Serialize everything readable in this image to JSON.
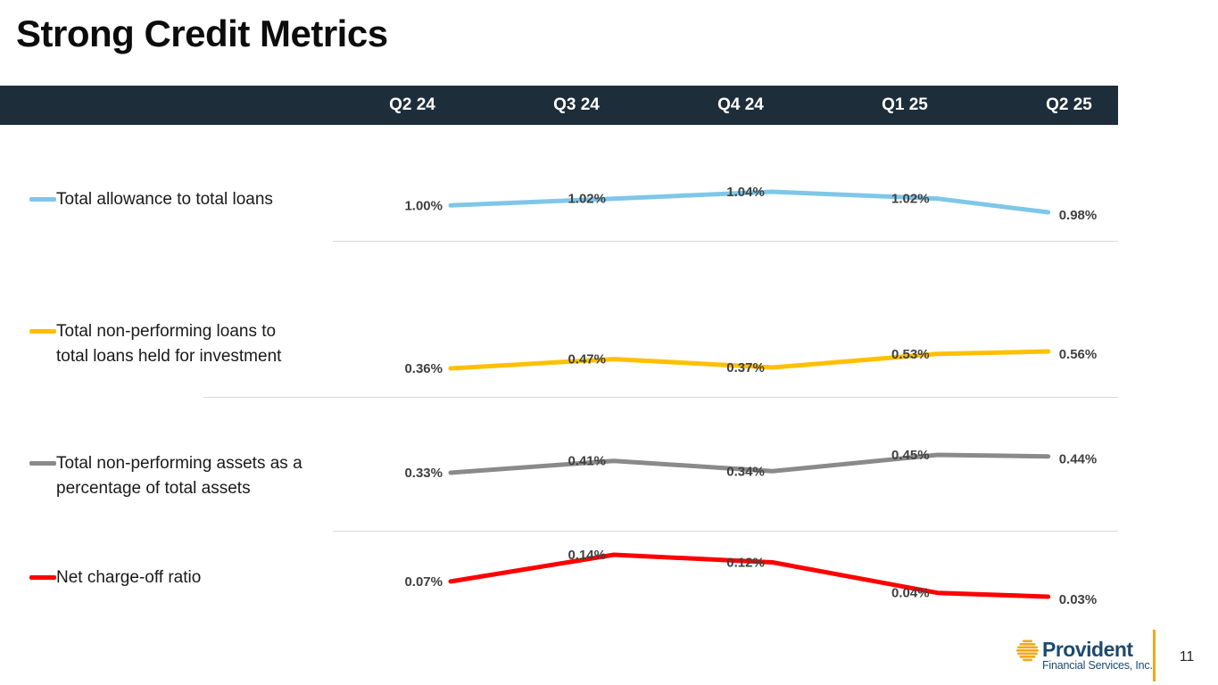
{
  "slide": {
    "title": "Strong Credit Metrics"
  },
  "table_header": {
    "bg_color": "#1e2d3a"
  },
  "chart_data": {
    "type": "line",
    "categories": [
      "Q2 24",
      "Q3 24",
      "Q4 24",
      "Q1 25",
      "Q2 25"
    ],
    "series": [
      {
        "name": "Total allowance to total loans",
        "legend_lines": [
          "Total allowance to total loans"
        ],
        "color": "#7EC7E8",
        "values": [
          1.0,
          1.02,
          1.04,
          1.02,
          0.98
        ],
        "labels": [
          "1.00%",
          "1.02%",
          "1.04%",
          "1.02%",
          "0.98%"
        ]
      },
      {
        "name": "Total non-performing loans to total loans held for investment",
        "legend_lines": [
          "Total non-performing loans to",
          "total loans held for investment"
        ],
        "color": "#FFC000",
        "values": [
          0.36,
          0.47,
          0.37,
          0.53,
          0.56
        ],
        "labels": [
          "0.36%",
          "0.47%",
          "0.37%",
          "0.53%",
          "0.56%"
        ]
      },
      {
        "name": "Total non-performing assets as a percentage of total assets",
        "legend_lines": [
          "Total non-performing assets as a",
          "percentage of total assets"
        ],
        "color": "#8A8A8A",
        "values": [
          0.33,
          0.41,
          0.34,
          0.45,
          0.44
        ],
        "labels": [
          "0.33%",
          "0.41%",
          "0.34%",
          "0.45%",
          "0.44%"
        ]
      },
      {
        "name": "Net charge-off ratio",
        "legend_lines": [
          "Net charge-off ratio"
        ],
        "color": "#FF0000",
        "values": [
          0.07,
          0.14,
          0.12,
          0.04,
          0.03
        ],
        "labels": [
          "0.07%",
          "0.14%",
          "0.12%",
          "0.04%",
          "0.03%"
        ]
      }
    ],
    "layout_hints": {
      "legend_position": "left",
      "grid": false,
      "data_labels": true,
      "label_color": "#404040"
    }
  },
  "footer": {
    "logo": {
      "name": "Provident",
      "subtitle": "Financial Services, Inc.",
      "icon": "provident-sun-icon",
      "accent_color": "#F2A71B",
      "text_color": "#1B4A70"
    },
    "page_number": "11"
  }
}
